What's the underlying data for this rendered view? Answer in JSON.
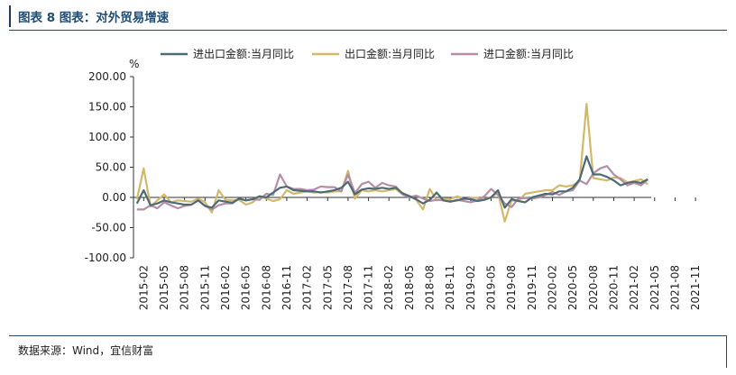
{
  "title": "图表 8 图表：对外贸易增速",
  "source": "数据来源：Wind，宜信财富",
  "chart_data": {
    "type": "line",
    "ylabel": "%",
    "ylim": [
      -100,
      200
    ],
    "yticks": [
      -100,
      -50,
      0,
      50,
      100,
      150,
      200
    ],
    "ytick_labels": [
      "-100.00",
      "-50.00",
      "0.00",
      "50.00",
      "100.00",
      "150.00",
      "200.00"
    ],
    "x_tick_labels": [
      "2015-02",
      "2015-05",
      "2015-08",
      "2015-11",
      "2016-02",
      "2016-05",
      "2016-08",
      "2016-11",
      "2017-02",
      "2017-05",
      "2017-08",
      "2017-11",
      "2018-02",
      "2018-05",
      "2018-08",
      "2018-11",
      "2019-02",
      "2019-05",
      "2019-08",
      "2019-11",
      "2020-02",
      "2020-05",
      "2020-08",
      "2020-11",
      "2021-02",
      "2021-05",
      "2021-08",
      "2021-11"
    ],
    "legend_position": "top",
    "grid": false,
    "series": [
      {
        "name": "进出口金额:当月同比",
        "color": "#4d6b74",
        "values": [
          -10,
          12,
          -13,
          -10,
          -5,
          -8,
          -10,
          -12,
          -12,
          -5,
          -14,
          -17,
          -5,
          -7,
          -9,
          -2,
          -5,
          -3,
          2,
          0,
          8,
          16,
          18,
          12,
          11,
          10,
          10,
          8,
          10,
          12,
          16,
          26,
          5,
          13,
          15,
          14,
          16,
          14,
          16,
          7,
          2,
          -3,
          -10,
          -4,
          8,
          -5,
          -7,
          -5,
          -2,
          -3,
          -6,
          -4,
          0,
          12,
          -17,
          -3,
          -6,
          -8,
          0,
          3,
          6,
          5,
          10,
          10,
          16,
          30,
          68,
          38,
          38,
          34,
          28,
          20,
          24,
          26,
          24,
          30
        ],
        "color_values": [
          "#4d6b74",
          "#d4b86a",
          "#b58ea6"
        ]
      },
      {
        "name": "出口金额:当月同比",
        "color": "#d4b86a",
        "values": [
          -3,
          48,
          -15,
          -5,
          5,
          -8,
          -5,
          -6,
          -7,
          -2,
          -8,
          -25,
          12,
          -4,
          -5,
          -4,
          -12,
          -8,
          2,
          -2,
          -6,
          -3,
          12,
          6,
          8,
          10,
          8,
          9,
          8,
          10,
          10,
          44,
          -2,
          12,
          10,
          12,
          10,
          12,
          14,
          5,
          3,
          -4,
          -20,
          14,
          -5,
          -2,
          -3,
          2,
          -3,
          -1,
          -1,
          -3,
          0,
          8,
          -40,
          -5,
          -6,
          6,
          8,
          10,
          12,
          12,
          20,
          18,
          20,
          27,
          155,
          32,
          30,
          28,
          33,
          32,
          25,
          27,
          30,
          22
        ],
        "color_values": []
      },
      {
        "name": "进口金额:当月同比",
        "color": "#b58ea6",
        "values": [
          -20,
          -20,
          -13,
          -18,
          -8,
          -13,
          -18,
          -14,
          -12,
          -5,
          -14,
          -20,
          -13,
          -10,
          -10,
          -2,
          -5,
          -3,
          -4,
          6,
          4,
          38,
          18,
          14,
          14,
          12,
          13,
          18,
          17,
          17,
          10,
          38,
          7,
          22,
          26,
          16,
          24,
          20,
          18,
          5,
          0,
          3,
          -2,
          -6,
          -4,
          -5,
          -7,
          -4,
          -6,
          -8,
          -5,
          2,
          14,
          4,
          -10,
          -16,
          -2,
          -1,
          -2,
          0,
          4,
          9,
          4,
          10,
          12,
          28,
          22,
          40,
          48,
          52,
          38,
          30,
          20,
          24,
          20,
          30
        ],
        "color_values": []
      }
    ]
  }
}
